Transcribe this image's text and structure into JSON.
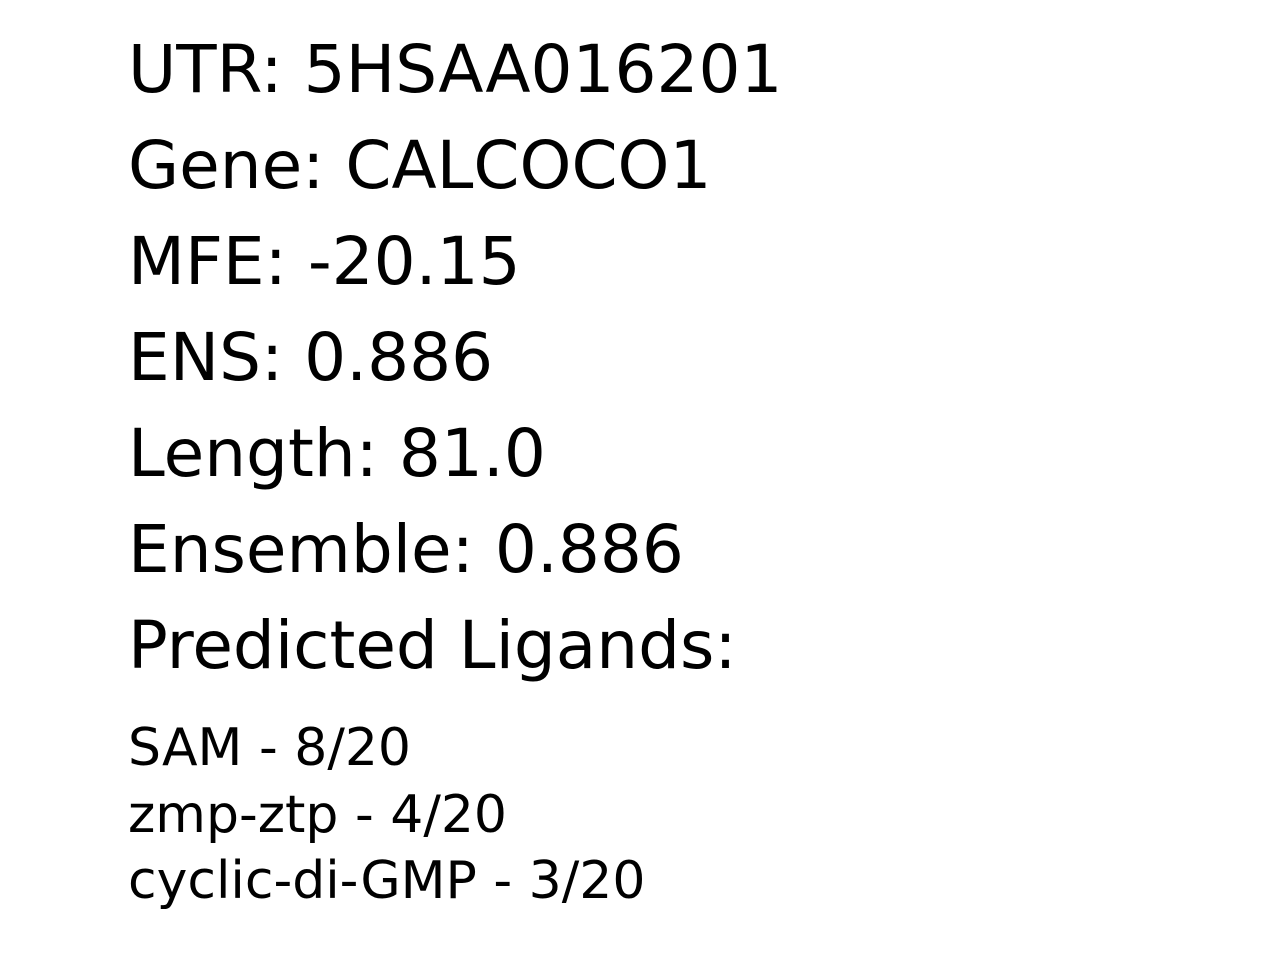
{
  "fields": {
    "utr": "UTR: 5HSAA016201",
    "gene": "Gene: CALCOCO1",
    "mfe": "MFE: -20.15",
    "ens": "ENS: 0.886",
    "length": "Length: 81.0",
    "ensemble": "Ensemble: 0.886",
    "ligands_heading": "Predicted Ligands:"
  },
  "ligands": [
    "SAM - 8/20",
    "zmp-ztp - 4/20",
    "cyclic-di-GMP - 3/20"
  ]
}
